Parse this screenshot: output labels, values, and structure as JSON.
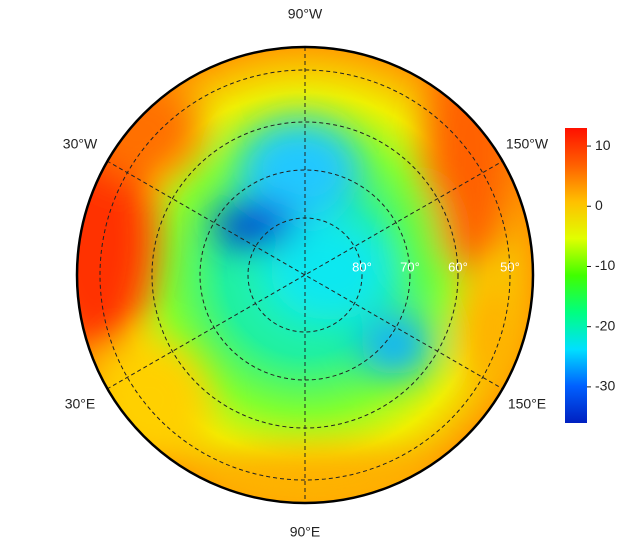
{
  "map": {
    "meridian_labels": [
      "90°W",
      "30°W",
      "150°W",
      "30°E",
      "150°E",
      "90°E"
    ],
    "latitude_labels": [
      "80°",
      "70°",
      "60°",
      "50°"
    ]
  },
  "colorbar": {
    "ylim": [
      -36,
      13
    ],
    "yticks": [
      10,
      0,
      -10,
      -20,
      -30
    ],
    "colors": [
      "#0020c0",
      "#0060ff",
      "#00e0ff",
      "#00ff80",
      "#40ff00",
      "#e0ff00",
      "#ffc000",
      "#ff6000",
      "#ff1000"
    ]
  }
}
